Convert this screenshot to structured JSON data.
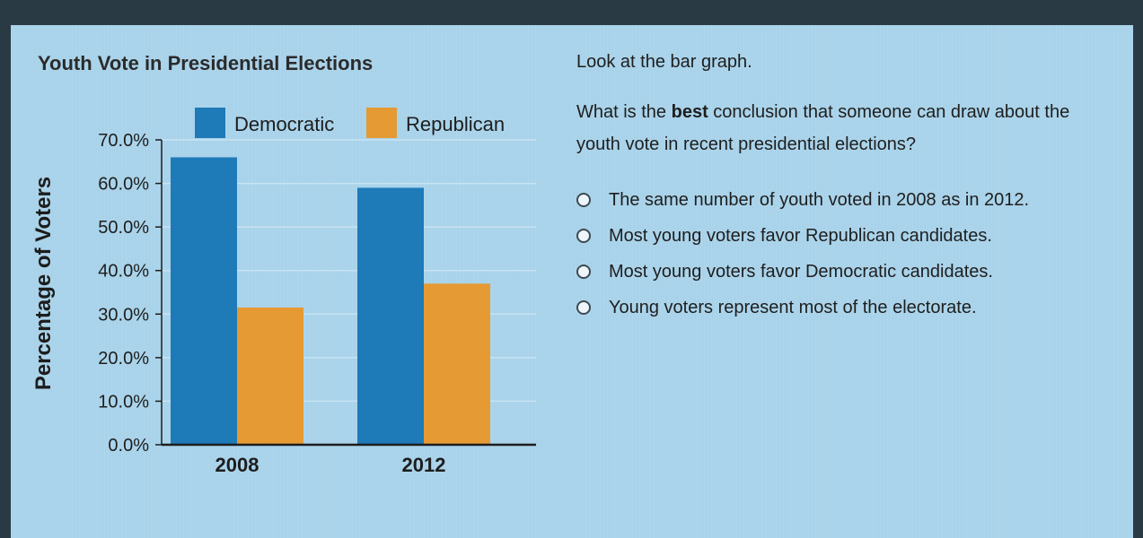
{
  "chart_data": {
    "type": "bar",
    "title": "Youth Vote in Presidential Elections",
    "ylabel": "Percentage of Voters",
    "xlabel": "",
    "categories": [
      "2008",
      "2012"
    ],
    "series": [
      {
        "name": "Democratic",
        "values": [
          66.0,
          59.0
        ],
        "color": "#1f7ab8"
      },
      {
        "name": "Republican",
        "values": [
          31.5,
          37.0
        ],
        "color": "#e59a33"
      }
    ],
    "ylim": [
      0,
      70
    ],
    "yticks": [
      0,
      10,
      20,
      30,
      40,
      50,
      60,
      70
    ],
    "ytick_labels": [
      "0.0%",
      "10.0%",
      "20.0%",
      "30.0%",
      "40.0%",
      "50.0%",
      "60.0%",
      "70.0%"
    ],
    "grid": true,
    "legend_position": "top"
  },
  "question": {
    "intro": "Look at the bar graph.",
    "text_before": "What is the ",
    "text_bold": "best",
    "text_after": " conclusion that someone can draw about the youth vote in recent presidential elections?",
    "options": [
      "The same number of youth voted in 2008 as in 2012.",
      "Most young voters favor Republican candidates.",
      "Most young voters favor Democratic candidates.",
      "Young voters represent most of the electorate."
    ]
  }
}
